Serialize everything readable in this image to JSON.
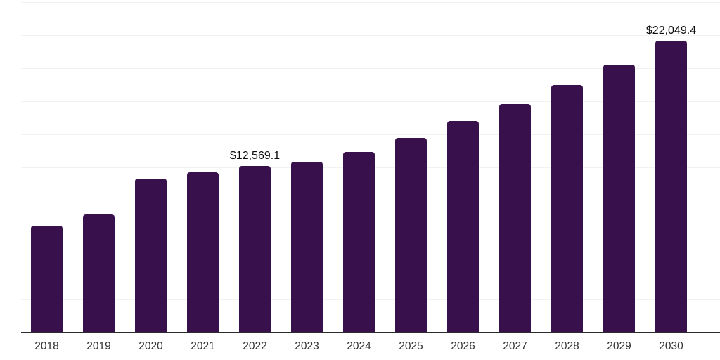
{
  "chart_data": {
    "type": "bar",
    "title": "",
    "xlabel": "",
    "ylabel": "",
    "categories": [
      "2018",
      "2019",
      "2020",
      "2021",
      "2022",
      "2023",
      "2024",
      "2025",
      "2026",
      "2027",
      "2028",
      "2029",
      "2030"
    ],
    "values": [
      8055,
      8905,
      11610,
      12120,
      12569.1,
      12890,
      13650,
      14720,
      15980,
      17260,
      18690,
      20270,
      22049.4
    ],
    "value_labels": {
      "2022": "$12,569.1",
      "2030": "$22,049.4"
    },
    "ylim": [
      0,
      25000
    ],
    "gridline_step": 2500,
    "grid": "horizontal-only",
    "legend_position": "none",
    "y_axis_tick_labels_visible": false
  },
  "colors": {
    "background": "#ffffff",
    "bar": "#38114c",
    "gridline": "#f2f2f2",
    "axis_line": "#2b2b2b",
    "tick_label": "#333333",
    "data_label": "#0d0d0d"
  }
}
